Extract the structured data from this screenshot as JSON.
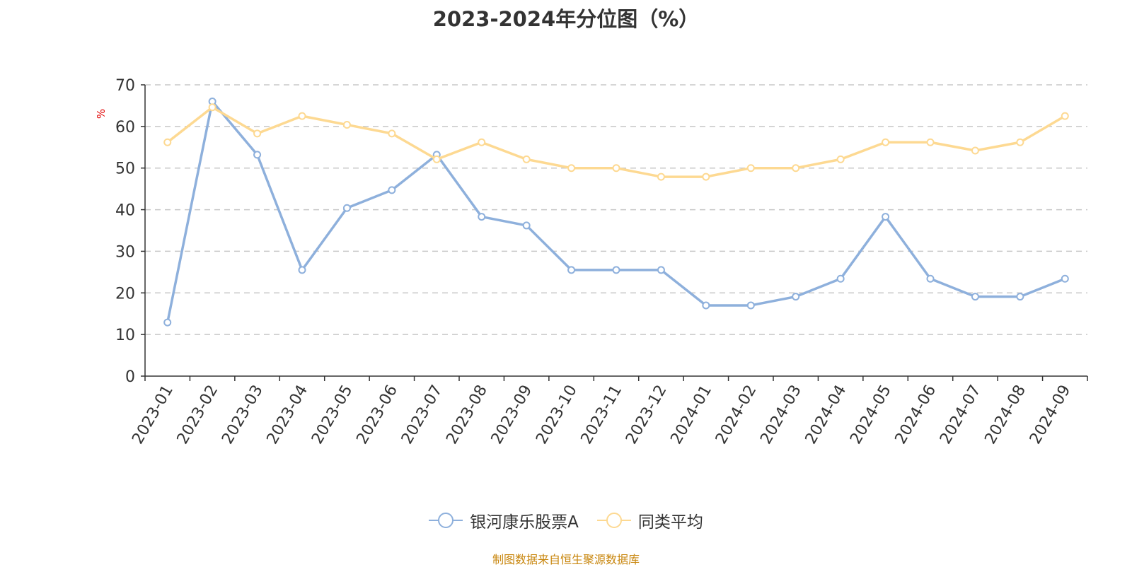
{
  "title": "2023-2024年分位图（%）",
  "source_note": "制图数据来自恒生聚源数据库",
  "chart_data": {
    "type": "line",
    "title": "2023-2024年分位图（%）",
    "xlabel": "",
    "ylabel": "%",
    "ylim": [
      0,
      70
    ],
    "yticks": [
      0,
      10,
      20,
      30,
      40,
      50,
      60,
      70
    ],
    "grid": "horizontal dashed",
    "legend_position": "bottom-center",
    "categories": [
      "2023-01",
      "2023-02",
      "2023-03",
      "2023-04",
      "2023-05",
      "2023-06",
      "2023-07",
      "2023-08",
      "2023-09",
      "2023-10",
      "2023-11",
      "2023-12",
      "2024-01",
      "2024-02",
      "2024-03",
      "2024-04",
      "2024-05",
      "2024-06",
      "2024-07",
      "2024-08",
      "2024-09"
    ],
    "series": [
      {
        "name": "银河康乐股票A",
        "color": "#8eb0dc",
        "values": [
          12.9,
          66.0,
          53.2,
          25.5,
          40.4,
          44.7,
          53.2,
          38.3,
          36.2,
          25.5,
          25.5,
          25.5,
          17.0,
          17.0,
          19.1,
          23.4,
          38.3,
          23.4,
          19.1,
          19.1,
          23.4
        ]
      },
      {
        "name": "同类平均",
        "color": "#fdd992",
        "values": [
          56.2,
          64.6,
          58.3,
          62.5,
          60.4,
          58.3,
          52.1,
          56.2,
          52.1,
          50.0,
          50.0,
          47.9,
          47.9,
          50.0,
          50.0,
          52.1,
          56.2,
          56.2,
          54.2,
          56.2,
          62.5
        ]
      }
    ]
  }
}
